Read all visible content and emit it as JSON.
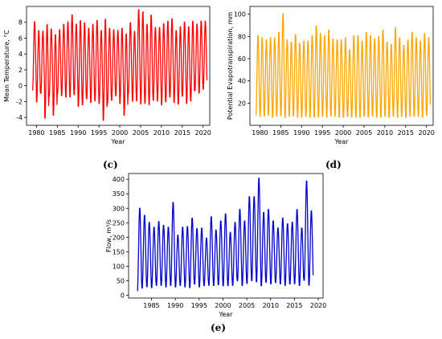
{
  "panel_labels": [
    "(c)",
    "(d)",
    "(e)"
  ],
  "chart_data": [
    {
      "type": "line",
      "panel": "(c)",
      "title": "",
      "xlabel": "Year",
      "ylabel": "Mean Temperature, °C",
      "xlim": [
        1977.6,
        2021.6
      ],
      "ylim": [
        -5,
        10
      ],
      "xticks": [
        1980,
        1985,
        1990,
        1995,
        2000,
        2005,
        2010,
        2015,
        2020
      ],
      "yticks": [
        -4,
        -2,
        0,
        2,
        4,
        6,
        8
      ],
      "color": "#ff0000",
      "frequency": "monthly",
      "start_year": 1979,
      "annual_max": [
        8.2,
        7.1,
        7.0,
        7.9,
        7.3,
        6.6,
        7.2,
        7.9,
        8.2,
        9.1,
        7.9,
        8.4,
        8.1,
        7.4,
        7.9,
        8.4,
        7.1,
        8.6,
        7.4,
        7.2,
        7.1,
        7.4,
        6.7,
        8.1,
        7.0,
        9.8,
        9.5,
        7.9,
        9.1,
        7.5,
        7.5,
        8.0,
        8.3,
        8.6,
        7.1,
        7.6,
        8.2,
        7.6,
        8.3,
        7.9,
        8.3,
        8.3
      ],
      "annual_min": [
        -0.7,
        -2.2,
        -1.1,
        -4.3,
        -1.5,
        -3.9,
        -1.1,
        -1.4,
        -1.6,
        -1.6,
        -1.3,
        -2.8,
        -2.6,
        -1.8,
        -2.3,
        -2.1,
        -2.4,
        -4.6,
        -2.4,
        -2.0,
        -1.4,
        -2.4,
        -3.9,
        -1.2,
        -2.1,
        -2.1,
        -2.5,
        -2.4,
        -2.6,
        -2.0,
        -2.1,
        -2.6,
        -2.2,
        -1.6,
        -2.3,
        -2.5,
        -1.5,
        -2.4,
        -2.1,
        -0.8,
        -1.1,
        -0.6
      ]
    },
    {
      "type": "line",
      "panel": "(d)",
      "title": "",
      "xlabel": "Year",
      "ylabel": "Potential Evapotranspiration, mm",
      "xlim": [
        1977.6,
        2021.6
      ],
      "ylim": [
        0,
        107
      ],
      "xticks": [
        1980,
        1985,
        1990,
        1995,
        2000,
        2005,
        2010,
        2015,
        2020
      ],
      "yticks": [
        20,
        40,
        60,
        80,
        100
      ],
      "color": "#ffa500",
      "frequency": "monthly",
      "start_year": 1979,
      "annual_max": [
        82,
        80,
        78,
        80,
        80,
        85,
        102,
        78,
        76,
        83,
        75,
        77,
        77,
        82,
        91,
        84,
        82,
        87,
        79,
        78,
        78,
        80,
        69,
        82,
        82,
        77,
        85,
        82,
        79,
        81,
        87,
        76,
        74,
        89,
        80,
        73,
        78,
        85,
        80,
        77,
        84,
        80
      ],
      "annual_min": [
        8,
        7,
        7,
        8,
        6,
        7,
        7,
        6,
        7,
        7,
        6,
        6,
        7,
        6,
        6,
        6,
        7,
        6,
        7,
        7,
        6,
        6,
        7,
        6,
        6,
        6,
        7,
        6,
        7,
        6,
        6,
        7,
        6,
        7,
        6,
        7,
        6,
        7,
        7,
        7,
        6,
        8
      ]
    },
    {
      "type": "line",
      "panel": "(e)",
      "title": "",
      "xlabel": "Year",
      "ylabel": "Flow, m³/s",
      "xlim": [
        1980.2,
        2021.0
      ],
      "ylim": [
        -10,
        420
      ],
      "xticks": [
        1985,
        1990,
        1995,
        2000,
        2005,
        2010,
        2015,
        2020
      ],
      "yticks": [
        0,
        50,
        100,
        150,
        200,
        250,
        300,
        350,
        400
      ],
      "color": "#0000cc",
      "frequency": "monthly",
      "start_year": 1982,
      "annual_max": [
        305,
        280,
        255,
        238,
        258,
        245,
        238,
        325,
        210,
        238,
        240,
        270,
        233,
        235,
        200,
        275,
        228,
        260,
        285,
        220,
        255,
        300,
        260,
        345,
        345,
        410,
        290,
        300,
        260,
        235,
        270,
        250,
        255,
        300,
        235,
        400,
        295
      ],
      "annual_min": [
        10,
        20,
        25,
        22,
        30,
        30,
        25,
        28,
        25,
        30,
        25,
        22,
        35,
        25,
        30,
        30,
        30,
        32,
        28,
        30,
        30,
        45,
        30,
        35,
        45,
        40,
        28,
        40,
        35,
        40,
        35,
        30,
        35,
        35,
        30,
        45,
        30
      ]
    }
  ]
}
